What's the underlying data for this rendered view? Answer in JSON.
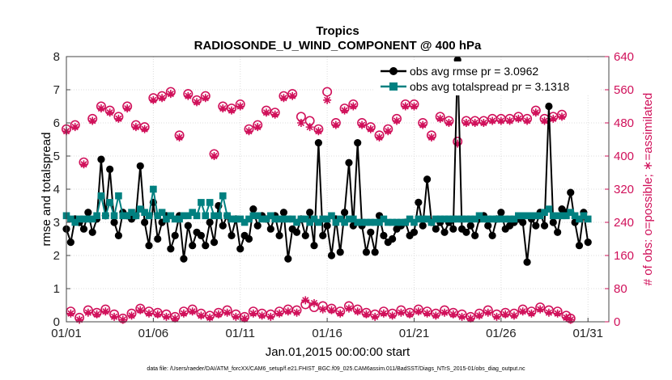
{
  "chart_data": {
    "type": "line",
    "title": "Tropics",
    "subtitle": "RADIOSONDE_U_WIND_COMPONENT @ 400 hPa",
    "xlabel": "Jan.01,2015 00:00:00 start",
    "ylabel": "rmse and totalspread",
    "y2label": "# of obs: o=possible; ∗=assimilated",
    "footnote": "data file: /Users/raeder/DAI/ATM_forcXX/CAM6_setup/f.e21.FHIST_BGC.f09_025.CAM6assim.011/BadSST/Diags_NTrS_2015-01/obs_diag_output.nc",
    "xlim": [
      0,
      31.2
    ],
    "ylim": [
      0,
      8
    ],
    "y2lim": [
      0,
      640
    ],
    "x_ticks": [
      0,
      5,
      10,
      15,
      20,
      25,
      30
    ],
    "x_tick_labels": [
      "01/01",
      "01/06",
      "01/11",
      "01/16",
      "01/21",
      "01/26",
      "01/31"
    ],
    "y_ticks": [
      0,
      1,
      2,
      3,
      4,
      5,
      6,
      7,
      8
    ],
    "y_tick_labels": [
      "0",
      "1",
      "2",
      "3",
      "4",
      "5",
      "6",
      "7",
      "8"
    ],
    "y2_ticks": [
      0,
      80,
      160,
      240,
      320,
      400,
      480,
      560,
      640
    ],
    "y2_tick_labels": [
      "0",
      "80",
      "160",
      "240",
      "320",
      "400",
      "480",
      "560",
      "640"
    ],
    "grid": true,
    "legend_position": "top-right",
    "x_step": 0.25,
    "x_start": 0,
    "colors": {
      "rmse": "#000000",
      "spread": "#008080",
      "obs": "#d0105a",
      "grid": "#dddddd"
    },
    "series": [
      {
        "name": "obs avg rmse",
        "label": "obs avg rmse pr = 3.0962",
        "axis": "left",
        "values": [
          2.8,
          2.4,
          3.1,
          3.0,
          2.8,
          3.3,
          2.7,
          3.1,
          4.9,
          3.2,
          4.6,
          3.0,
          2.6,
          3.3,
          3.2,
          3.1,
          3.2,
          4.7,
          3.0,
          2.3,
          3.6,
          2.5,
          3.0,
          3.2,
          2.2,
          2.6,
          3.2,
          1.9,
          2.9,
          2.3,
          2.7,
          2.6,
          2.3,
          3.0,
          2.4,
          3.5,
          2.9,
          3.2,
          2.6,
          3.1,
          2.2,
          2.6,
          2.5,
          3.4,
          2.9,
          3.2,
          3.1,
          2.8,
          3.2,
          2.6,
          3.3,
          1.9,
          2.8,
          2.7,
          3.1,
          2.6,
          3.3,
          2.3,
          5.4,
          2.6,
          2.9,
          2.0,
          3.1,
          2.1,
          3.3,
          4.8,
          2.9,
          5.4,
          2.9,
          2.1,
          2.7,
          2.1,
          3.2,
          2.6,
          2.4,
          2.5,
          2.8,
          2.9,
          3.0,
          2.6,
          2.7,
          3.6,
          2.9,
          4.3,
          3.0,
          2.8,
          3.0,
          2.7,
          3.0,
          2.8,
          7.9,
          2.8,
          2.7,
          2.9,
          2.6,
          3.1,
          3.2,
          2.9,
          2.6,
          3.1,
          3.3,
          2.8,
          2.9,
          3.0,
          3.1,
          3.0,
          1.8,
          3.1,
          2.9,
          3.3,
          2.9,
          6.5,
          3.0,
          2.7,
          3.4,
          3.3,
          3.9,
          3.0,
          2.3,
          3.3,
          2.4
        ]
      },
      {
        "name": "obs avg totalspread",
        "label": "obs avg totalspread pr = 3.1318",
        "axis": "left",
        "values": [
          3.2,
          3.1,
          3.0,
          3.1,
          3.1,
          3.1,
          3.1,
          3.2,
          3.8,
          3.2,
          3.6,
          3.2,
          3.8,
          3.2,
          3.2,
          3.3,
          3.2,
          3.4,
          3.3,
          3.2,
          4.0,
          3.2,
          3.3,
          3.1,
          3.2,
          3.1,
          3.1,
          3.2,
          3.2,
          3.3,
          3.2,
          3.6,
          3.2,
          3.6,
          3.2,
          3.2,
          3.8,
          3.2,
          3.1,
          3.1,
          3.1,
          3.0,
          3.1,
          3.2,
          3.2,
          3.1,
          3.1,
          3.2,
          3.1,
          3.1,
          3.1,
          3.1,
          3.1,
          3.0,
          3.1,
          3.1,
          3.0,
          3.1,
          3.0,
          3.1,
          3.1,
          3.2,
          3.0,
          3.1,
          3.0,
          3.1,
          3.1,
          3.0,
          3.0,
          3.0,
          3.0,
          3.0,
          3.0,
          3.1,
          3.0,
          3.0,
          3.0,
          3.0,
          3.0,
          3.1,
          3.0,
          3.1,
          3.1,
          3.1,
          3.0,
          3.1,
          3.1,
          3.1,
          3.1,
          3.1,
          3.1,
          3.1,
          3.1,
          3.1,
          3.1,
          3.2,
          3.1,
          3.1,
          3.1,
          3.1,
          3.1,
          3.1,
          3.1,
          3.1,
          3.2,
          3.2,
          3.2,
          3.2,
          3.2,
          3.2,
          3.3,
          3.4,
          3.2,
          3.2,
          3.2,
          3.2,
          3.3,
          3.2,
          3.1,
          3.2,
          3.1
        ]
      },
      {
        "name": "obs possible",
        "axis": "right",
        "marker": "circle",
        "values": [
          465,
          25,
          475,
          10,
          385,
          28,
          490,
          22,
          520,
          30,
          510,
          18,
          495,
          8,
          520,
          20,
          475,
          32,
          470,
          25,
          540,
          22,
          545,
          18,
          555,
          12,
          450,
          25,
          550,
          30,
          535,
          20,
          545,
          15,
          405,
          22,
          520,
          28,
          515,
          18,
          525,
          12,
          465,
          25,
          475,
          20,
          510,
          18,
          505,
          25,
          545,
          30,
          550,
          28,
          495,
          42,
          485,
          35,
          465,
          38,
          555,
          32,
          480,
          25,
          515,
          38,
          525,
          30,
          480,
          22,
          470,
          18,
          450,
          25,
          465,
          20,
          490,
          28,
          525,
          22,
          525,
          30,
          480,
          25,
          450,
          20,
          495,
          28,
          485,
          22,
          435,
          18,
          485,
          12,
          485,
          20,
          485,
          28,
          490,
          18,
          490,
          22,
          490,
          20,
          495,
          30,
          490,
          25,
          510,
          35,
          490,
          28,
          495,
          25,
          500,
          15,
          8
        ]
      },
      {
        "name": "obs assimilated",
        "axis": "right",
        "marker": "asterisk",
        "values": [
          460,
          20,
          470,
          5,
          380,
          22,
          485,
          18,
          515,
          25,
          505,
          12,
          490,
          5,
          515,
          15,
          470,
          28,
          465,
          20,
          535,
          18,
          540,
          12,
          550,
          8,
          445,
          20,
          545,
          25,
          530,
          15,
          540,
          10,
          400,
          18,
          515,
          22,
          510,
          12,
          520,
          8,
          460,
          20,
          470,
          15,
          505,
          12,
          500,
          20,
          540,
          25,
          545,
          22,
          480,
          52,
          470,
          45,
          460,
          30,
          535,
          28,
          475,
          20,
          510,
          32,
          520,
          25,
          475,
          18,
          465,
          12,
          445,
          20,
          460,
          15,
          485,
          22,
          520,
          18,
          520,
          25,
          475,
          20,
          445,
          15,
          490,
          22,
          480,
          18,
          430,
          12,
          480,
          8,
          480,
          15,
          480,
          22,
          485,
          12,
          485,
          18,
          485,
          15,
          490,
          25,
          485,
          20,
          505,
          30,
          485,
          22,
          490,
          20,
          495,
          10,
          5
        ]
      }
    ]
  }
}
